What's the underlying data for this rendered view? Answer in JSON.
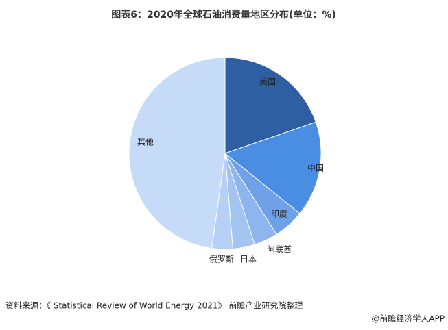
{
  "chart_data": {
    "type": "pie",
    "title": "图表6：2020年全球石油消费量地区分布(单位：%)",
    "categories": [
      "美国",
      "中国",
      "印度",
      "阿联酋",
      "日本",
      "俄罗斯",
      "其他"
    ],
    "values": [
      19.7,
      16.1,
      5.2,
      4.0,
      3.7,
      3.5,
      47.8
    ],
    "colors": [
      "#2e5fa3",
      "#4a8ee3",
      "#6fa1e8",
      "#8db5ee",
      "#a3c3f0",
      "#b5d0f4",
      "#c6dbf7"
    ],
    "source": "资料来源：《 Statistical Review of World Energy 2021》 前瞻产业研究院整理",
    "footer": "@前瞻经济学人APP"
  }
}
